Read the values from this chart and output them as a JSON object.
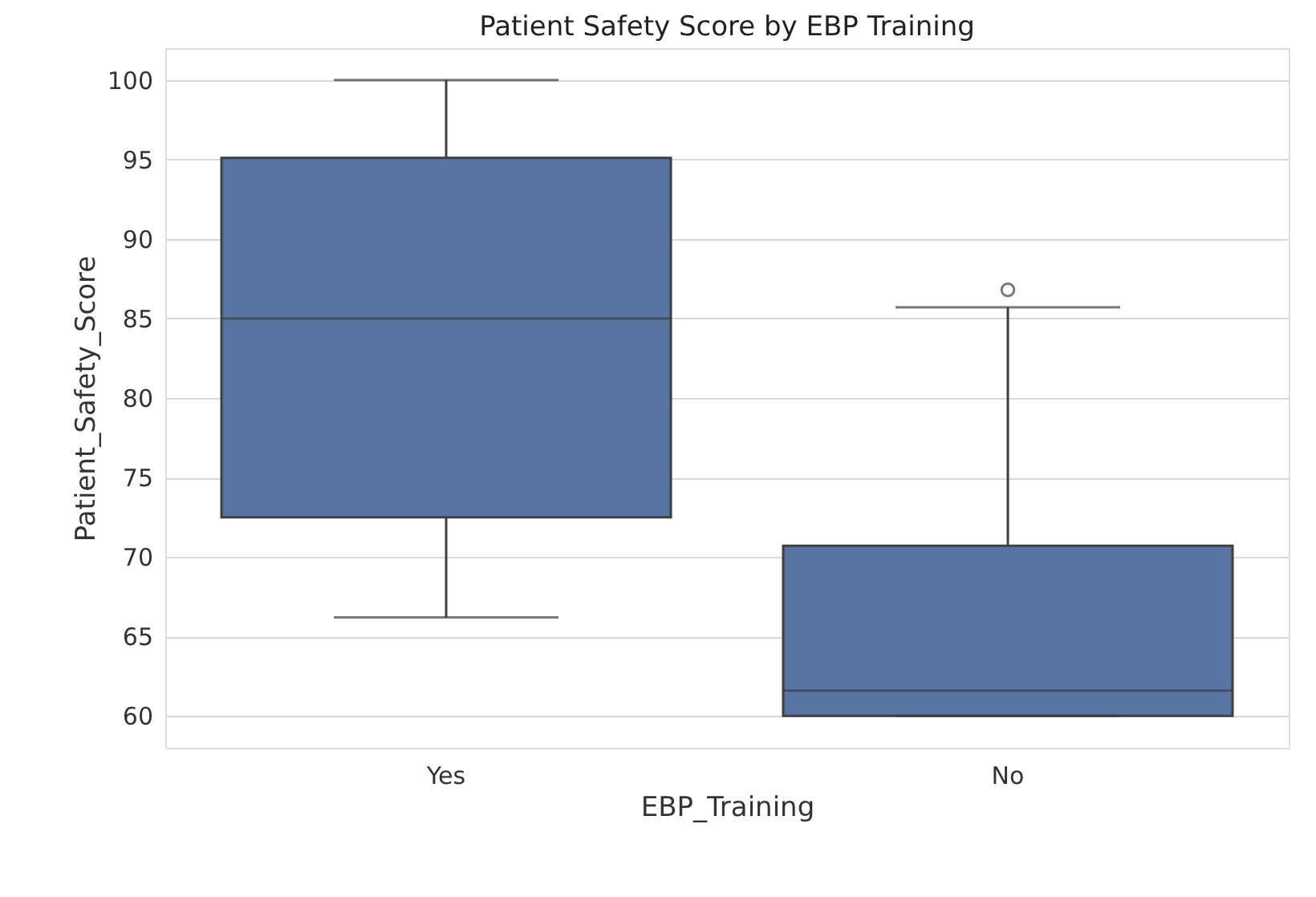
{
  "chart_data": {
    "type": "box",
    "title": "Patient Safety Score by EBP Training",
    "xlabel": "EBP_Training",
    "ylabel": "Patient_Safety_Score",
    "categories": [
      "Yes",
      "No"
    ],
    "series": [
      {
        "color": "#5874a3",
        "boxes": [
          {
            "low": 66.2,
            "q1": 72.5,
            "median": 85.0,
            "q3": 95.1,
            "high": 100.0
          },
          {
            "low": 60.0,
            "q1": 60.0,
            "median": 61.6,
            "q3": 70.7,
            "high": 85.7,
            "outliers": [
              86.8
            ]
          }
        ]
      }
    ],
    "ylim": [
      58,
      102
    ],
    "yticks": [
      60,
      65,
      70,
      75,
      80,
      85,
      90,
      95,
      100
    ],
    "grid": "y"
  }
}
